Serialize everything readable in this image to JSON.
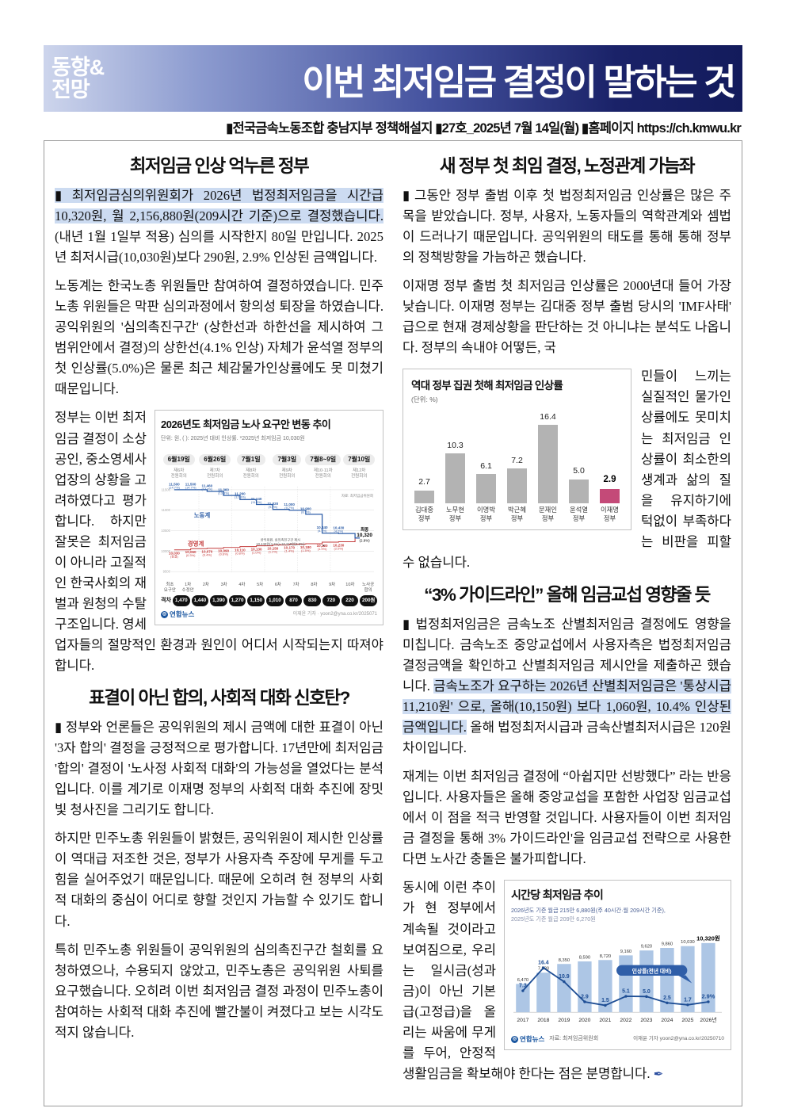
{
  "masthead": {
    "badge_line1": "동향&",
    "badge_line2": "전망",
    "title": "이번 최저임금 결정이 말하는 것",
    "meta": "▮전국금속노동조합 충남지부 정책해설지  ▮27호_2025년 7월 14일(월)  ▮홈페이지  https://ch.kmwu.kr"
  },
  "colors": {
    "banner_dark": "#131b5c",
    "highlight": "#ccdbf1",
    "labor_blue": "#2f5fa8",
    "mgmt_red": "#c43b3b",
    "bar_gray": "#b3b3b3",
    "bar_pink": "#c44a78",
    "bar_lightblue": "#adc6e5",
    "line_navy": "#1d4d94"
  },
  "left_column": {
    "section1": {
      "heading": "최저임금 인상 억누른 정부",
      "para1_segments": [
        {
          "text": "▮ 최저임금심의위원회가 2026년 법정최저임금을 시간급 10,320원, 월 2,156,880원(209시간 기준)으로 결정했습니다.",
          "highlight": true
        },
        {
          "text": " (내년 1월 1일부 적용) 심의를 시작한지 80일 만입니다. 2025년 최저시급(10,030원)보다 290원, 2.9% 인상된 금액입니다.",
          "highlight": false
        }
      ],
      "para2": "노동계는 한국노총 위원들만 참여하여 결정하였습니다. 민주노총 위원들은 막판 심의과정에서 항의성 퇴장을 하였습니다. 공익위원의 '심의촉진구간' (상한선과 하한선을 제시하여 그 범위안에서 결정)의 상한선(4.1% 인상) 자체가 윤석열 정부의 첫 인상률(5.0%)은 물론 최근 체감물가인상률에도 못 미쳤기 때문입니다.",
      "para3": "정부는 이번 최저임금 결정이 소상공인, 중소영세사업장의 상황을 고려하였다고 평가합니다. 하지만 잘못은 최저임금이 아니라 고질적인 한국사회의 재벌과 원청의 수탈 구조입니다. 영세업자들의 절망적인 환경과 원인이 어디서 시작되는지 따져야 합니다."
    },
    "section2": {
      "heading": "표결이 아닌 합의, 사회적 대화 신호탄?",
      "para1": "▮ 정부와 언론들은 공익위원의 제시 금액에 대한 표결이 아닌 '3자 합의' 결정을 긍정적으로 평가합니다. 17년만에 최저임금 '합의' 결정이 '노사정 사회적 대화'의 가능성을 열었다는 분석입니다. 이를 계기로 이재명 정부의 사회적 대화 추진에 장밋빛 청사진을 그리기도 합니다.",
      "para2": "하지만 민주노총 위원들이 밝혔든, 공익위원이 제시한 인상률이 역대급 저조한 것은, 정부가 사용자측 주장에 무게를 두고 힘을 실어주었기 때문입니다. 때문에 오히려 현 정부의 사회적 대화의 중심이 어디로 향할 것인지 가늠할 수 있기도 합니다.",
      "para3": "특히 민주노총 위원들이 공익위원의 심의촉진구간 철회를 요청하였으나, 수용되지 않았고, 민주노총은 공익위원 사퇴를 요구했습니다. 오히려 이번 최저임금 결정 과정이 민주노총이 참여하는 사회적 대화 추진에 빨간불이 켜졌다고 보는 시각도 적지 않습니다."
    }
  },
  "right_column": {
    "section1": {
      "heading": "새 정부 첫 최임 결정, 노정관계 가늠좌",
      "para1": "▮ 그동안 정부 출범 이후 첫 법정최저임금 인상률은 많은 주목을 받았습니다. 정부, 사용자, 노동자들의 역학관계와 셈법이 드러나기 때문입니다. 공익위원의 태도를 통해 통해 정부의 정책방향을 가늠하곤 했습니다.",
      "para2a": "이재명 정부 출범 첫 최저임금 인상률은 2000년대  들어 가장 낮습니다. 이재명 정부는 김대중 정부 출범 당시의 'IMF사태' 급으로 현재 경제상황을 판단하는 것 아니냐는 분석도 나옵니다. 정부의 속내야 어떻든, 국",
      "para2b": "민들이 느끼는 실질적인 물가인상률에도 못미치는 최저임금 인상률이 최소한의 생계과 삶의 질을 유지하기에 턱없이 부족하다는 비판을 피할 수 없습니다."
    },
    "section2": {
      "heading": "“3% 가이드라인” 올해 임금교섭 영향줄 듯",
      "para1_segments": [
        {
          "text": "▮ 법정최저임금은 금속노조 산별최저임금 결정에도 영향을 미칩니다. 금속노조 중앙교섭에서 사용자측은 법정최저임금 결정금액을 확인하고 산별최저임금 제시안을 제출하곤 했습니다. ",
          "highlight": false
        },
        {
          "text": "금속노조가 요구하는 2026년 산별최저임금은 '통상시급 11,210원' 으로, 올해(10,150원) 보다 1,060원, 10.4% 인상된 금액입니다.",
          "highlight": true
        },
        {
          "text": " 올해 법정최저시급과 금속산별최저시급은 120원 차이입니다.",
          "highlight": false
        }
      ],
      "para2": "재계는 이번 최저임금 결정에 “아쉽지만 선방했다” 라는 반응입니다. 사용자들은 올해 중앙교섭을 포함한 사업장 임금교섭에서 이 점을 적극 반영할 것입니다. 사용자들이 이번 최저임금 결정을 통해 3% 가이드라인'을 임금교섭 전략으로 사용한다면 노사간 충돌은 불가피합니다.",
      "para3": "동시에 이런 추이가 현 정부에서 계속될 것이라고 보여짐으로, 우리는 일시금(성과금)이 아닌 기본급(고정급)을 올리는 싸움에 무게를 두어, 안정적 생활임금을 확보해야 한다는 점은 분명합니다."
    }
  },
  "chart_data": [
    {
      "type": "line",
      "title": "2026년도 최저임금 노사 요구안 변동 추이",
      "subtitle": "단위: 원, ( ): 2025년 대비 인상률. *2025년 최저임금 10,030원",
      "source": "자료: 최저임금위원회",
      "date_headers": [
        {
          "date": "6월19일",
          "session": "제6차\n전원회의"
        },
        {
          "date": "6월26일",
          "session": "제7차\n전원회의"
        },
        {
          "date": "7월1일",
          "session": "제8차\n전원회의"
        },
        {
          "date": "7월3일",
          "session": "제9차\n전원회의"
        },
        {
          "date": "7월8~9일",
          "session": "제10·11차\n전원회의"
        },
        {
          "date": "7월10일",
          "session": "제12차\n전원회의"
        }
      ],
      "ylim": [
        9500,
        11500
      ],
      "yticks": [
        "11500",
        "11000",
        "10500",
        "10000",
        "9500"
      ],
      "series": [
        {
          "name": "노동계",
          "color": "#2f5fa8",
          "values": [
            11500,
            11500,
            11460,
            11360,
            11260,
            11140,
            11020,
            11000,
            10900,
            10440,
            10430,
            10320
          ],
          "points": [
            {
              "v": "11,500",
              "p": "(14.7%)"
            },
            {
              "v": "11,500",
              "p": "(14.7%)"
            },
            {
              "v": "11,460",
              "p": "(14.3%)"
            },
            {
              "v": "11,360",
              "p": "(13.3%)"
            },
            {
              "v": "11,260",
              "p": "(12.3%)"
            },
            {
              "v": "11,140",
              "p": "(11.1%)"
            },
            {
              "v": "11,020",
              "p": "(9.9%)"
            },
            {
              "v": "11,000",
              "p": "(9.7%)"
            },
            {
              "v": "10,900",
              "p": "(8.7%)"
            },
            {
              "v": "10,440",
              "p": "(4.1%)"
            },
            {
              "v": "10,430",
              "p": "(4.0%)"
            }
          ]
        },
        {
          "name": "경영계",
          "color": "#c43b3b",
          "values": [
            10030,
            10060,
            10070,
            10090,
            10110,
            10130,
            10150,
            10170,
            10180,
            10220,
            10230,
            10320
          ],
          "points": [
            {
              "v": "10,030",
              "p": "(동결)"
            },
            {
              "v": "10,060",
              "p": "(0.3%)"
            },
            {
              "v": "10,070",
              "p": "(0.4%)"
            },
            {
              "v": "10,090",
              "p": "(0.6%)"
            },
            {
              "v": "10,110",
              "p": "(0.8%)"
            },
            {
              "v": "10,130",
              "p": "(1.0%)"
            },
            {
              "v": "10,150",
              "p": "(1.2%)"
            },
            {
              "v": "10,170",
              "p": "(1.4%)"
            },
            {
              "v": "10,180",
              "p": "(1.5%)"
            },
            {
              "v": "10,220",
              "p": "(1.9%)"
            },
            {
              "v": "10,230",
              "p": "(2.0%)"
            }
          ]
        }
      ],
      "annotation_line1": "공익위원, 심의촉진구간 제시",
      "annotation_line2": "10,440원(4.1%)~10,210원(1.8%)",
      "final": {
        "label": "최종",
        "value": "10,320",
        "pct": "(2.9%)"
      },
      "x_labels": [
        "최초\n요구안",
        "1차\n수정안",
        "2차",
        "3차",
        "4차",
        "5차",
        "6차",
        "7차",
        "8차",
        "9차",
        "10차",
        "노사공\n합의"
      ],
      "gap_label": "격차",
      "gaps": [
        "1,470",
        "1,440",
        "1,390",
        "1,270",
        "1,150",
        "1,010",
        "870",
        "830",
        "720",
        "220",
        "200원"
      ],
      "brand": "연합뉴스",
      "credit": "이재윤 기자 · yoon2@yna.co.kr/2025071"
    },
    {
      "type": "bar",
      "title": "역대 정부 집권 첫해 최저임금 인상률",
      "unit": "(단위: %)",
      "categories": [
        "김대중 정부",
        "노무현 정부",
        "이명박 정부",
        "박근혜 정부",
        "문재인 정부",
        "윤석열 정부",
        "이재명 정부"
      ],
      "values": [
        2.7,
        10.3,
        6.1,
        7.2,
        16.4,
        5.0,
        2.9
      ],
      "value_labels": [
        "2.7",
        "10.3",
        "6.1",
        "7.2",
        "16.4",
        "5.0",
        "2.9"
      ],
      "highlight_index": 6,
      "ylim": [
        0,
        18
      ]
    },
    {
      "type": "bar+line",
      "title": "시간당 최저임금 추이",
      "subtitle1": "2026년도 기준 월급 215만 6,880원(주 40시간·월 209시간 기준),",
      "subtitle2": "2025년도 기준 월급 209만 6,270원",
      "categories": [
        "2017",
        "2018",
        "2019",
        "2020",
        "2021",
        "2022",
        "2023",
        "2024",
        "2025",
        "2026년"
      ],
      "bar_values": [
        6470,
        7530,
        8350,
        8590,
        8720,
        9160,
        9620,
        9860,
        10030,
        10320
      ],
      "bar_labels": [
        "6,470",
        "7,530",
        "8,350",
        "8,590",
        "8,720",
        "9,160",
        "9,620",
        "9,860",
        "10,030",
        "10,320원"
      ],
      "line_values": [
        7.3,
        16.4,
        10.9,
        2.9,
        1.5,
        5.1,
        5.0,
        2.5,
        1.7,
        2.9
      ],
      "line_labels": [
        "7.3",
        "16.4",
        "10.9",
        "2.9",
        "1.5",
        "5.1",
        "5.0",
        "2.5",
        "1.7",
        "2.9%"
      ],
      "legend": "인상률(전년 대비)",
      "source": "자료: 최저임금위원회",
      "brand": "연합뉴스",
      "credit": "이재윤 기자 yoon2@yna.co.kr/20250710"
    }
  ]
}
